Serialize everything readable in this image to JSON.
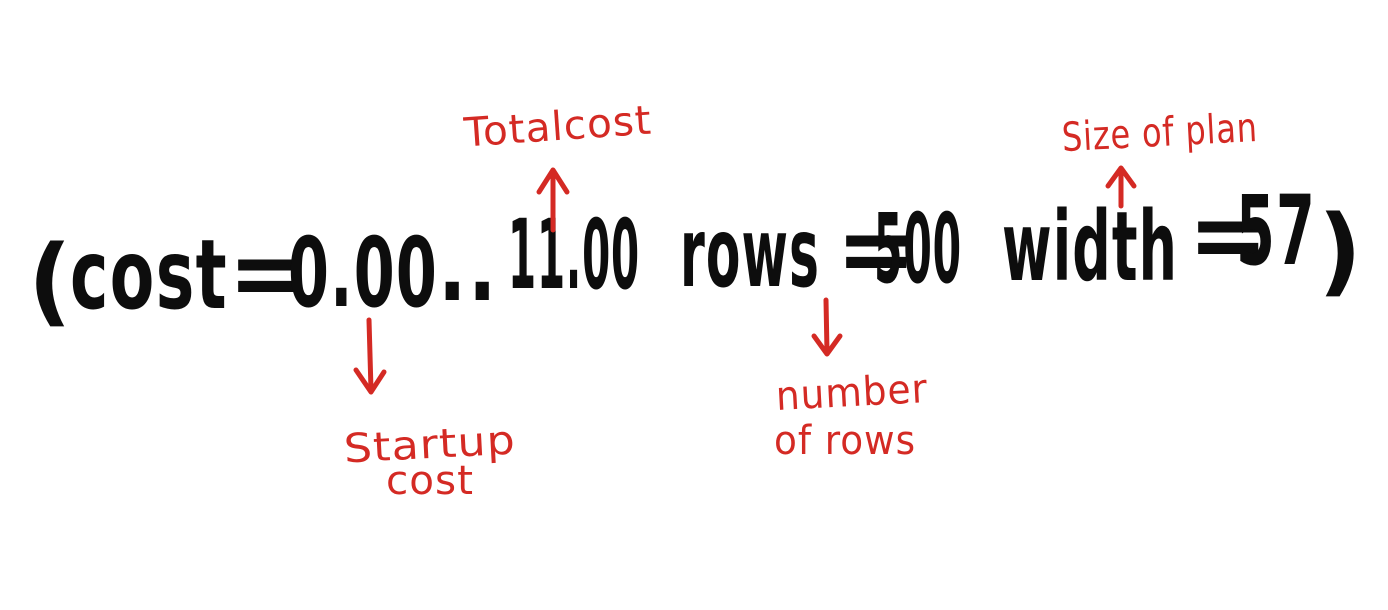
{
  "colors": {
    "ink": "#0d0d0d",
    "annotation": "#d42a24",
    "background": "#ffffff"
  },
  "expression": {
    "open_paren": "(",
    "cost_label": "cost",
    "equals_1": "=",
    "startup_value": "0.00",
    "range_dots": "..",
    "total_value": "11.00",
    "rows_label": "rows",
    "equals_2": "=",
    "rows_value": "500",
    "width_label": "width",
    "equals_3": "=",
    "width_value": "57",
    "close_paren": ")"
  },
  "annotations": {
    "total_cost": "Totalcost",
    "startup_cost_line1": "Startup",
    "startup_cost_line2": "cost",
    "number_of_rows_line1": "number",
    "number_of_rows_line2": "of rows",
    "size_of_plan": "Size of plan"
  }
}
